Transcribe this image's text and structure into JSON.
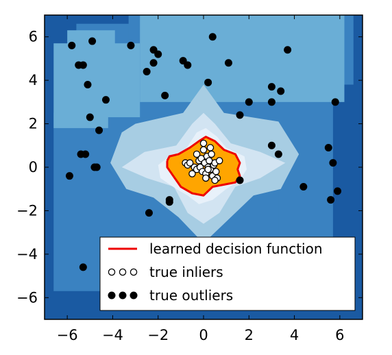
{
  "chart_data": {
    "type": "scatter",
    "title": "",
    "xlabel": "",
    "ylabel": "",
    "xlim": [
      -7,
      7
    ],
    "ylim": [
      -7,
      7
    ],
    "x_ticks": [
      -6,
      -4,
      -2,
      0,
      2,
      4,
      6
    ],
    "y_ticks": [
      6,
      4,
      2,
      0,
      -2,
      -4,
      -6
    ],
    "x_tick_labels": [
      "−6",
      "−4",
      "−2",
      "0",
      "2",
      "4",
      "6"
    ],
    "y_tick_labels": [
      "6",
      "4",
      "2",
      "0",
      "−2",
      "−4",
      "−6"
    ],
    "grid": false,
    "legend_position": "lower-right",
    "legend": [
      {
        "label": "learned decision function",
        "kind": "line",
        "color": "#ee0000"
      },
      {
        "label": "true inliers",
        "kind": "open-markers",
        "color": "#000000"
      },
      {
        "label": "true outliers",
        "kind": "filled-markers",
        "color": "#000000"
      }
    ],
    "background": {
      "kind": "filled-contour",
      "colormap": "Blues_r",
      "levels": [
        {
          "color": "#1a5aa2",
          "region": "outermost"
        },
        {
          "color": "#3a82c1"
        },
        {
          "color": "#6aaed6"
        },
        {
          "color": "#a7cde3"
        },
        {
          "color": "#d2e4f2"
        },
        {
          "color": "#e8f1fa",
          "region": "innermost"
        }
      ],
      "decision_region_color": "#ffa500"
    },
    "decision_boundary": {
      "color": "#ee0000",
      "x": [
        -1.6,
        -1.5,
        -1.1,
        -0.6,
        -0.2,
        0.1,
        0.5,
        0.9,
        1.4,
        1.6,
        1.5,
        1.6,
        1.4,
        0.9,
        0.4,
        0.0,
        -0.5,
        -1.0,
        -1.4,
        -1.6,
        -1.6
      ],
      "y": [
        0.3,
        0.5,
        0.6,
        0.9,
        1.2,
        1.4,
        1.2,
        0.8,
        0.6,
        0.2,
        -0.1,
        -0.4,
        -0.7,
        -0.8,
        -0.9,
        -1.3,
        -1.2,
        -0.9,
        -0.3,
        0.0,
        0.3
      ]
    },
    "series": [
      {
        "name": "true inliers",
        "marker": "open-circle",
        "x": [
          -0.8,
          -0.7,
          -0.5,
          -0.4,
          -0.3,
          -0.2,
          -0.15,
          -0.1,
          -0.05,
          0.0,
          0.05,
          0.1,
          0.15,
          0.2,
          0.25,
          0.3,
          0.35,
          0.4,
          0.45,
          0.5,
          0.55,
          0.6,
          0.7,
          -0.6,
          0.0,
          0.3,
          0.5,
          -0.3,
          0.1,
          0.2
        ],
        "y": [
          0.2,
          0.1,
          -0.3,
          0.0,
          -0.1,
          0.3,
          0.0,
          0.4,
          -0.2,
          0.8,
          0.2,
          -0.3,
          0.5,
          0.0,
          0.3,
          -0.1,
          0.6,
          -0.4,
          0.1,
          0.2,
          -0.2,
          -0.5,
          0.3,
          0.2,
          1.1,
          0.9,
          -0.6,
          0.6,
          -0.5,
          -0.1
        ]
      },
      {
        "name": "true outliers",
        "marker": "filled-circle",
        "x": [
          -5.8,
          -5.3,
          -4.9,
          -5.1,
          -5.5,
          -5.0,
          -4.3,
          -4.6,
          -5.4,
          -5.2,
          -4.8,
          -4.7,
          -5.9,
          -5.3,
          -3.2,
          -2.2,
          -2.0,
          -2.5,
          -2.2,
          -1.7,
          -1.5,
          -1.5,
          -0.9,
          -0.7,
          -2.4,
          0.4,
          1.1,
          1.6,
          2.0,
          3.0,
          3.0,
          3.4,
          3.7,
          3.0,
          3.3,
          4.4,
          5.5,
          5.7,
          5.8,
          5.9,
          5.6,
          0.2,
          1.6
        ],
        "y": [
          5.6,
          4.7,
          5.8,
          3.8,
          4.7,
          2.3,
          3.1,
          1.7,
          0.6,
          0.6,
          0.0,
          0.0,
          -0.4,
          -4.6,
          5.6,
          5.4,
          5.2,
          4.4,
          4.8,
          3.3,
          -1.6,
          -1.5,
          4.9,
          4.7,
          -2.1,
          6.0,
          4.8,
          2.4,
          3.0,
          3.7,
          3.0,
          3.5,
          5.4,
          1.0,
          0.6,
          -0.9,
          0.9,
          0.2,
          3.0,
          -1.1,
          -1.5,
          3.9,
          -0.6
        ]
      }
    ]
  }
}
